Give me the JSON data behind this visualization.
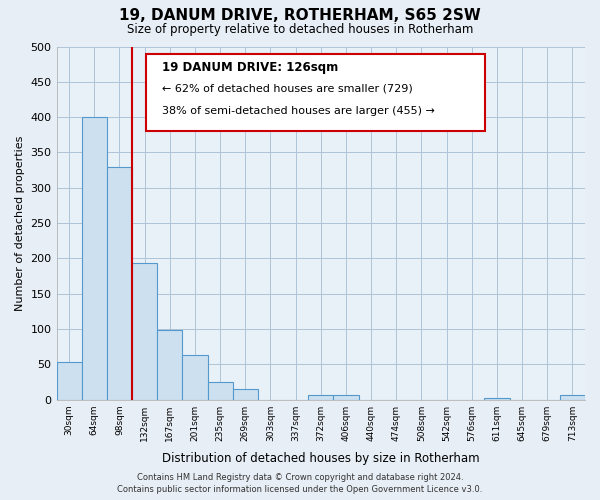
{
  "title": "19, DANUM DRIVE, ROTHERHAM, S65 2SW",
  "subtitle": "Size of property relative to detached houses in Rotherham",
  "xlabel": "Distribution of detached houses by size in Rotherham",
  "ylabel": "Number of detached properties",
  "bar_labels": [
    "30sqm",
    "64sqm",
    "98sqm",
    "132sqm",
    "167sqm",
    "201sqm",
    "235sqm",
    "269sqm",
    "303sqm",
    "337sqm",
    "372sqm",
    "406sqm",
    "440sqm",
    "474sqm",
    "508sqm",
    "542sqm",
    "576sqm",
    "611sqm",
    "645sqm",
    "679sqm",
    "713sqm"
  ],
  "bar_values": [
    53,
    400,
    330,
    193,
    99,
    63,
    25,
    15,
    0,
    0,
    7,
    7,
    0,
    0,
    0,
    0,
    0,
    3,
    0,
    0,
    7
  ],
  "bar_color": "#cce0f0",
  "bar_edge_color": "#5599cc",
  "vline_position": 2.5,
  "vline_color": "#cc0000",
  "annotation_title": "19 DANUM DRIVE: 126sqm",
  "annotation_line1": "← 62% of detached houses are smaller (729)",
  "annotation_line2": "38% of semi-detached houses are larger (455) →",
  "annotation_box_color": "#ffffff",
  "annotation_box_edge": "#cc0000",
  "ylim": [
    0,
    500
  ],
  "yticks": [
    0,
    50,
    100,
    150,
    200,
    250,
    300,
    350,
    400,
    450,
    500
  ],
  "footer1": "Contains HM Land Registry data © Crown copyright and database right 2024.",
  "footer2": "Contains public sector information licensed under the Open Government Licence v3.0.",
  "fig_bg_color": "#e8eef5",
  "plot_bg_color": "#e8f0f8",
  "grid_color": "#b0c4d8"
}
